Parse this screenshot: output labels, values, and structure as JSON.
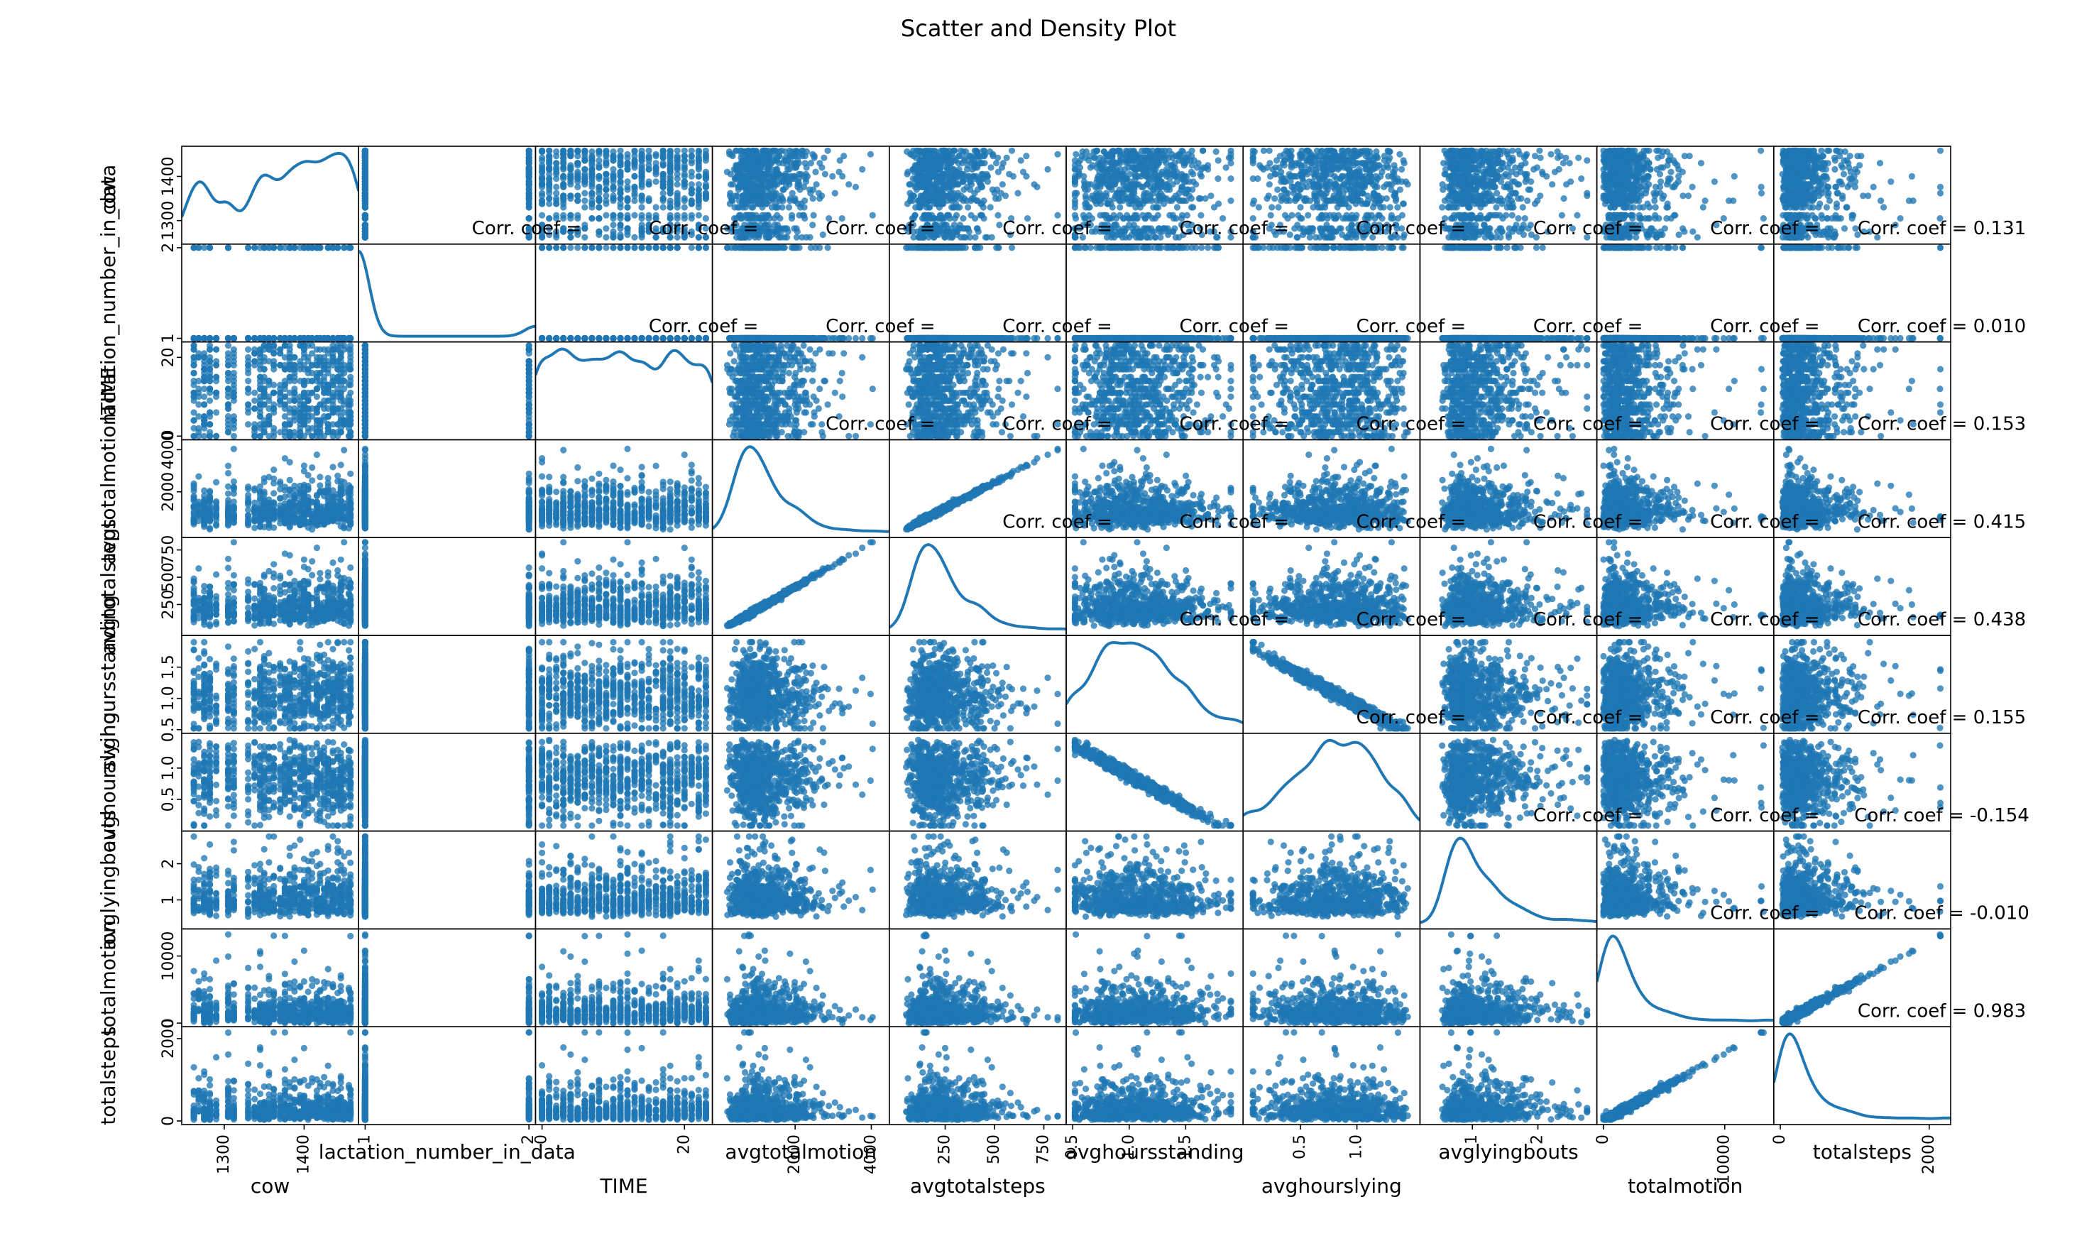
{
  "chart_data": {
    "type": "scatter",
    "title": "Scatter and Density Plot",
    "corr_label": "Corr. coef = ",
    "variables": [
      {
        "name": "cow",
        "min": 1255,
        "max": 1460,
        "y_ticks": [
          {
            "v": 1300,
            "label": "1300"
          },
          {
            "v": 1400,
            "label": "1400"
          }
        ],
        "x_ticks": [
          {
            "v": 1300,
            "label": "1300"
          },
          {
            "v": 1400,
            "label": "1400"
          }
        ]
      },
      {
        "name": "lactation_number_in_data",
        "min": 1,
        "max": 2,
        "y_ticks": [
          {
            "v": 1,
            "label": "1"
          },
          {
            "v": 2,
            "label": "2"
          }
        ],
        "x_ticks": [
          {
            "v": 1,
            "label": "1"
          },
          {
            "v": 2,
            "label": "2"
          }
        ]
      },
      {
        "name": "TIME",
        "min": 0,
        "max": 23,
        "y_ticks": [
          {
            "v": 0,
            "label": "0"
          },
          {
            "v": 20,
            "label": "20"
          }
        ],
        "x_ticks": [
          {
            "v": 0,
            "label": "0"
          },
          {
            "v": 20,
            "label": "20"
          }
        ]
      },
      {
        "name": "avgtotalmotion",
        "min": 0,
        "max": 4300,
        "y_ticks": [
          {
            "v": 2000,
            "label": "2000"
          },
          {
            "v": 4000,
            "label": "4000"
          }
        ],
        "x_ticks": [
          {
            "v": 2000,
            "label": "2000"
          },
          {
            "v": 4000,
            "label": "4000"
          }
        ]
      },
      {
        "name": "avgtotalsteps",
        "min": 0,
        "max": 830,
        "y_ticks": [
          {
            "v": 250,
            "label": "250"
          },
          {
            "v": 500,
            "label": "500"
          },
          {
            "v": 750,
            "label": "750"
          }
        ],
        "x_ticks": [
          {
            "v": 250,
            "label": "250"
          },
          {
            "v": 500,
            "label": "500"
          },
          {
            "v": 750,
            "label": "750"
          }
        ]
      },
      {
        "name": "avghoursstanding",
        "min": 0.5,
        "max": 1.95,
        "y_ticks": [
          {
            "v": 0.5,
            "label": "0.5"
          },
          {
            "v": 1.0,
            "label": "1.0"
          },
          {
            "v": 1.5,
            "label": "1.5"
          }
        ],
        "x_ticks": [
          {
            "v": 0.5,
            "label": "0.5"
          },
          {
            "v": 1.0,
            "label": "1.0"
          },
          {
            "v": 1.5,
            "label": "1.5"
          }
        ]
      },
      {
        "name": "avghourslying",
        "min": 0.05,
        "max": 1.5,
        "y_ticks": [
          {
            "v": 0.5,
            "label": "0.5"
          },
          {
            "v": 1.0,
            "label": "1.0"
          }
        ],
        "x_ticks": [
          {
            "v": 0.5,
            "label": "0.5"
          },
          {
            "v": 1.0,
            "label": "1.0"
          }
        ]
      },
      {
        "name": "avglyingbouts",
        "min": 0.3,
        "max": 2.8,
        "y_ticks": [
          {
            "v": 1,
            "label": "1"
          },
          {
            "v": 2,
            "label": "2"
          }
        ],
        "x_ticks": [
          {
            "v": 1,
            "label": "1"
          },
          {
            "v": 2,
            "label": "2"
          }
        ]
      },
      {
        "name": "totalmotion",
        "min": 0,
        "max": 13500,
        "y_ticks": [
          {
            "v": 0,
            "label": "0"
          },
          {
            "v": 10000,
            "label": "10000"
          }
        ],
        "x_ticks": [
          {
            "v": 0,
            "label": "0"
          },
          {
            "v": 10000,
            "label": "10000"
          }
        ]
      },
      {
        "name": "totalsteps",
        "min": 0,
        "max": 2200,
        "y_ticks": [
          {
            "v": 0,
            "label": "0"
          },
          {
            "v": 2000,
            "label": "2000"
          }
        ],
        "x_ticks": [
          {
            "v": 0,
            "label": "0"
          },
          {
            "v": 2000,
            "label": "2000"
          }
        ]
      }
    ],
    "correlations": [
      {
        "row": 0,
        "col": 1,
        "text": "Corr. coef = "
      },
      {
        "row": 0,
        "col": 2,
        "text": "Corr. coef = "
      },
      {
        "row": 0,
        "col": 3,
        "text": "Corr. coef = "
      },
      {
        "row": 0,
        "col": 4,
        "text": "Corr. coef = "
      },
      {
        "row": 0,
        "col": 5,
        "text": "Corr. coef = "
      },
      {
        "row": 0,
        "col": 6,
        "text": "Corr. coef = "
      },
      {
        "row": 0,
        "col": 7,
        "text": "Corr. coef = "
      },
      {
        "row": 0,
        "col": 8,
        "text": "Corr. coef = "
      },
      {
        "row": 0,
        "col": 9,
        "text": "Corr. coef = 0.131"
      },
      {
        "row": 1,
        "col": 2,
        "text": "Corr. coef = "
      },
      {
        "row": 1,
        "col": 3,
        "text": "Corr. coef = "
      },
      {
        "row": 1,
        "col": 4,
        "text": "Corr. coef = "
      },
      {
        "row": 1,
        "col": 5,
        "text": "Corr. coef = "
      },
      {
        "row": 1,
        "col": 6,
        "text": "Corr. coef = "
      },
      {
        "row": 1,
        "col": 7,
        "text": "Corr. coef = "
      },
      {
        "row": 1,
        "col": 8,
        "text": "Corr. coef = "
      },
      {
        "row": 1,
        "col": 9,
        "text": "Corr. coef = 0.010"
      },
      {
        "row": 2,
        "col": 3,
        "text": "Corr. coef = "
      },
      {
        "row": 2,
        "col": 4,
        "text": "Corr. coef = "
      },
      {
        "row": 2,
        "col": 5,
        "text": "Corr. coef = "
      },
      {
        "row": 2,
        "col": 6,
        "text": "Corr. coef = "
      },
      {
        "row": 2,
        "col": 7,
        "text": "Corr. coef = "
      },
      {
        "row": 2,
        "col": 8,
        "text": "Corr. coef = "
      },
      {
        "row": 2,
        "col": 9,
        "text": "Corr. coef = 0.153"
      },
      {
        "row": 3,
        "col": 4,
        "text": "Corr. coef = "
      },
      {
        "row": 3,
        "col": 5,
        "text": "Corr. coef = "
      },
      {
        "row": 3,
        "col": 6,
        "text": "Corr. coef = "
      },
      {
        "row": 3,
        "col": 7,
        "text": "Corr. coef = "
      },
      {
        "row": 3,
        "col": 8,
        "text": "Corr. coef = "
      },
      {
        "row": 3,
        "col": 9,
        "text": "Corr. coef = 0.415"
      },
      {
        "row": 4,
        "col": 5,
        "text": "Corr. coef = "
      },
      {
        "row": 4,
        "col": 6,
        "text": "Corr. coef = "
      },
      {
        "row": 4,
        "col": 7,
        "text": "Corr. coef = "
      },
      {
        "row": 4,
        "col": 8,
        "text": "Corr. coef = "
      },
      {
        "row": 4,
        "col": 9,
        "text": "Corr. coef = 0.438"
      },
      {
        "row": 5,
        "col": 6,
        "text": "Corr. coef = "
      },
      {
        "row": 5,
        "col": 7,
        "text": "Corr. coef = "
      },
      {
        "row": 5,
        "col": 8,
        "text": "Corr. coef = "
      },
      {
        "row": 5,
        "col": 9,
        "text": "Corr. coef = 0.155"
      },
      {
        "row": 6,
        "col": 7,
        "text": "Corr. coef = "
      },
      {
        "row": 6,
        "col": 8,
        "text": "Corr. coef = "
      },
      {
        "row": 6,
        "col": 9,
        "text": "Corr. coef = -0.154"
      },
      {
        "row": 7,
        "col": 8,
        "text": "Corr. coef = "
      },
      {
        "row": 7,
        "col": 9,
        "text": "Corr. coef = -0.010"
      },
      {
        "row": 8,
        "col": 9,
        "text": "Corr. coef = 0.983"
      }
    ],
    "grid": false,
    "legend": "none",
    "color": "#1f77b4"
  }
}
